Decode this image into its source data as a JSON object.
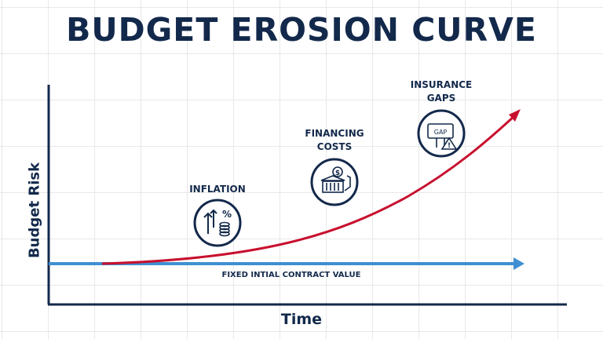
{
  "title": "BUDGET EROSION CURVE",
  "axes": {
    "y_label": "Budget Risk",
    "x_label": "Time"
  },
  "baseline": {
    "label": "FIXED INTIAL CONTRACT VALUE",
    "color": "#3f8fd2"
  },
  "curve": {
    "color": "#c8102e"
  },
  "annotations": [
    {
      "lines": [
        "INFLATION"
      ],
      "icon": "inflation-icon"
    },
    {
      "lines": [
        "FINANCING",
        "COSTS"
      ],
      "icon": "financing-icon"
    },
    {
      "lines": [
        "INSURANCE",
        "GAPS"
      ],
      "icon": "insurance-gap-icon"
    }
  ],
  "gap_sign_text": "GAP",
  "colors": {
    "navy": "#13294b",
    "grid": "#e8e8e8"
  }
}
